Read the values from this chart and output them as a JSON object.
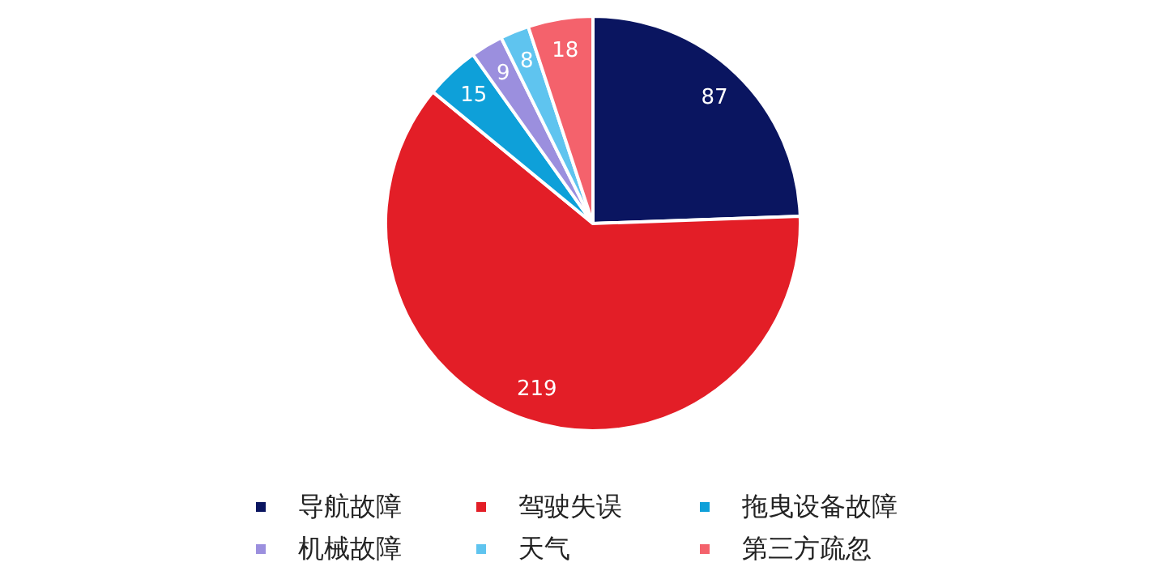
{
  "chart_data": {
    "type": "pie",
    "categories": [
      "导航故障",
      "驾驶失误",
      "拖曳设备故障",
      "机械故障",
      "天气",
      "第三方疏忽"
    ],
    "values": [
      87,
      219,
      15,
      9,
      8,
      18
    ],
    "colors": [
      "#0a1560",
      "#e31e27",
      "#0ea0d9",
      "#9b8fde",
      "#5fc4ef",
      "#f4626c"
    ],
    "data_labels": true,
    "legend": "bottom"
  }
}
